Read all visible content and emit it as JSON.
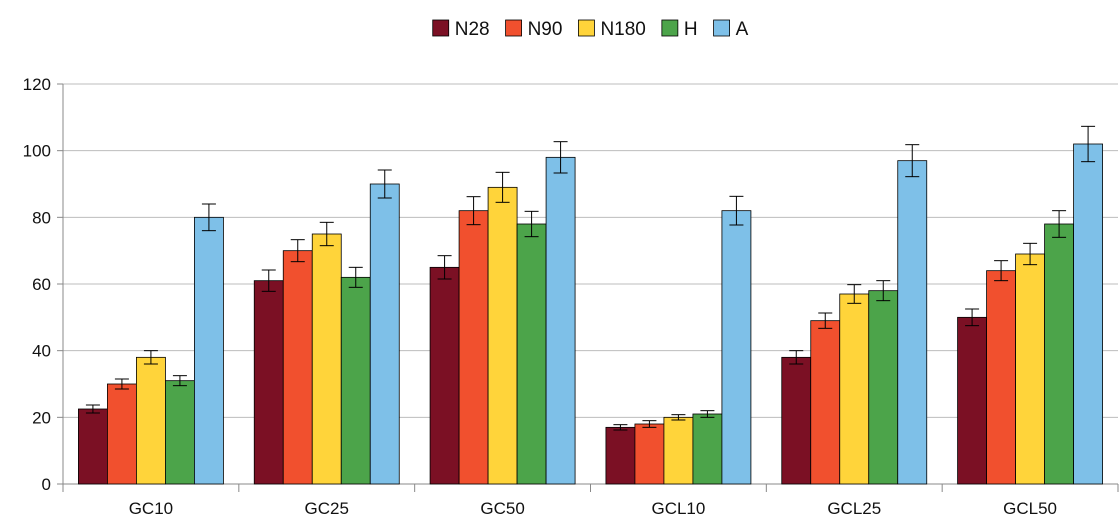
{
  "chart_data": {
    "type": "bar",
    "title": "",
    "xlabel": "",
    "ylabel": "",
    "ylim": [
      0,
      120
    ],
    "yticks": [
      0,
      20,
      40,
      60,
      80,
      100,
      120
    ],
    "grid": true,
    "legend_position": "top-center",
    "categories": [
      "GC10",
      "GC25",
      "GC50",
      "GCL10",
      "GCL25",
      "GCL50"
    ],
    "series": [
      {
        "name": "N28",
        "color": "#7b1024",
        "values": [
          22.5,
          61,
          65,
          17,
          38,
          50
        ],
        "errors": [
          1.2,
          3.2,
          3.5,
          0.8,
          2.0,
          2.5
        ]
      },
      {
        "name": "N90",
        "color": "#f1502e",
        "values": [
          30,
          70,
          82,
          18,
          49,
          64
        ],
        "errors": [
          1.5,
          3.3,
          4.2,
          1.0,
          2.3,
          3.0
        ]
      },
      {
        "name": "N180",
        "color": "#ffd43a",
        "values": [
          38,
          75,
          89,
          20,
          57,
          69
        ],
        "errors": [
          2.0,
          3.5,
          4.5,
          0.8,
          2.8,
          3.2
        ]
      },
      {
        "name": "H",
        "color": "#4ca44a",
        "values": [
          31,
          62,
          78,
          21,
          58,
          78
        ],
        "errors": [
          1.5,
          3.0,
          3.8,
          1.0,
          3.0,
          4.0
        ]
      },
      {
        "name": "A",
        "color": "#7ec0e8",
        "values": [
          80,
          90,
          98,
          82,
          97,
          102
        ],
        "errors": [
          4.0,
          4.2,
          4.7,
          4.3,
          4.8,
          5.3
        ]
      }
    ]
  }
}
